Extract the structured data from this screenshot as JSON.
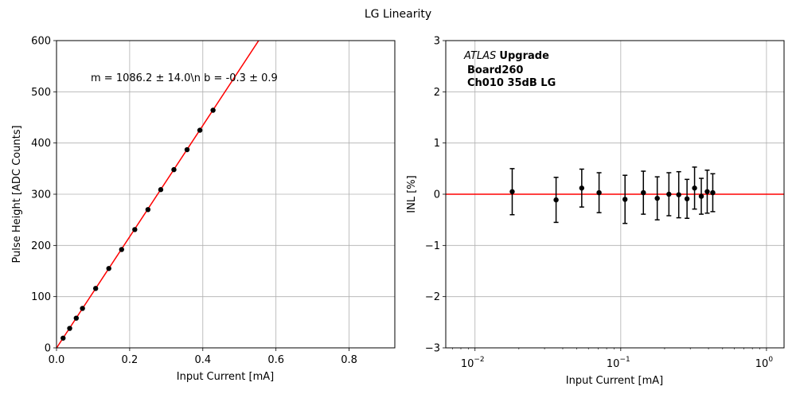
{
  "figure": {
    "title": "LG Linearity"
  },
  "chart_data": [
    {
      "type": "scatter",
      "xlabel": "Input Current [mA]",
      "ylabel": "Pulse Height [ADC Counts]",
      "xlim": [
        0,
        0.925
      ],
      "ylim": [
        0,
        600
      ],
      "xscale": "linear",
      "grid": true,
      "xticks": [
        0,
        0.2,
        0.4,
        0.6,
        0.8
      ],
      "xtick_labels": [
        "0.0",
        "0.2",
        "0.4",
        "0.6",
        "0.8"
      ],
      "yticks": [
        0,
        100,
        200,
        300,
        400,
        500,
        600
      ],
      "ytick_labels": [
        "0",
        "100",
        "200",
        "300",
        "400",
        "500",
        "600"
      ],
      "annotation": "m = 1086.2 ± 14.0\\n b = -0.3 ± 0.9",
      "fit": {
        "slope": 1086.2,
        "intercept": -0.3,
        "color": "#ff0000"
      },
      "marker_color": "#000000",
      "points": {
        "x": [
          0.018,
          0.036,
          0.054,
          0.071,
          0.107,
          0.143,
          0.178,
          0.214,
          0.25,
          0.285,
          0.321,
          0.357,
          0.392,
          0.428
        ],
        "y": [
          19,
          38,
          58,
          77,
          116,
          155,
          192,
          231,
          270,
          309,
          348,
          387,
          425,
          464
        ]
      }
    },
    {
      "type": "scatter",
      "xlabel": "Input Current [mA]",
      "ylabel": "INL [%]",
      "xlim": [
        0.0063,
        1.32
      ],
      "ylim": [
        -3,
        3
      ],
      "xscale": "log",
      "grid": true,
      "xticks": [
        0.01,
        0.1,
        1
      ],
      "xtick_labels": [
        "10",
        "10",
        "10"
      ],
      "xtick_exponents": [
        "−2",
        "−1",
        "0"
      ],
      "yticks": [
        -3,
        -2,
        -1,
        0,
        1,
        2,
        3
      ],
      "ytick_labels": [
        "−3",
        "−2",
        "−1",
        "0",
        "1",
        "2",
        "3"
      ],
      "reference_line": {
        "y": 0,
        "color": "#ff0000"
      },
      "annotation_lines": [
        {
          "italic": "ATLAS",
          "bold": "Upgrade"
        },
        {
          "italic": "",
          "bold": "Board260"
        },
        {
          "italic": "",
          "bold": "Ch010 35dB LG"
        }
      ],
      "points": {
        "x": [
          0.018,
          0.036,
          0.054,
          0.071,
          0.107,
          0.143,
          0.178,
          0.214,
          0.25,
          0.285,
          0.321,
          0.357,
          0.392,
          0.428
        ],
        "y": [
          0.05,
          -0.11,
          0.12,
          0.03,
          -0.1,
          0.03,
          -0.08,
          0.0,
          -0.01,
          -0.09,
          0.12,
          -0.04,
          0.05,
          0.03
        ],
        "err": [
          0.45,
          0.44,
          0.37,
          0.39,
          0.47,
          0.42,
          0.42,
          0.42,
          0.45,
          0.38,
          0.41,
          0.35,
          0.42,
          0.37
        ]
      }
    }
  ]
}
